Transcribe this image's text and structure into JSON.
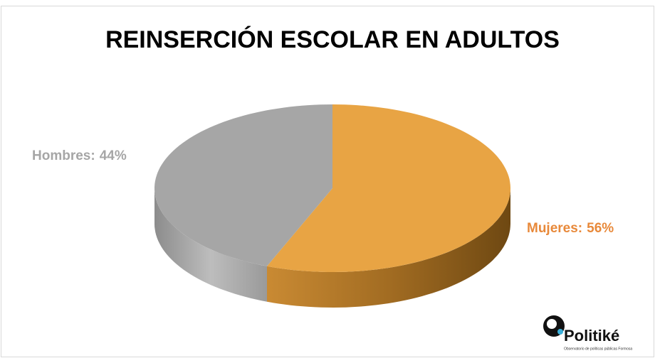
{
  "chart_data": {
    "type": "pie3d",
    "title": "REINSERCIÓN ESCOLAR EN ADULTOS",
    "categories": [
      "Mujeres:",
      "Hombres:"
    ],
    "values": [
      56,
      44
    ],
    "value_labels": [
      "56%",
      "44%"
    ],
    "colors": [
      "#E8A444",
      "#A6A6A6"
    ],
    "label_colors": [
      "#E8893A",
      "#A6A6A6"
    ]
  },
  "logo": {
    "name": "Politiké",
    "subtitle": "Observatorio de políticas públicas Formosa"
  }
}
